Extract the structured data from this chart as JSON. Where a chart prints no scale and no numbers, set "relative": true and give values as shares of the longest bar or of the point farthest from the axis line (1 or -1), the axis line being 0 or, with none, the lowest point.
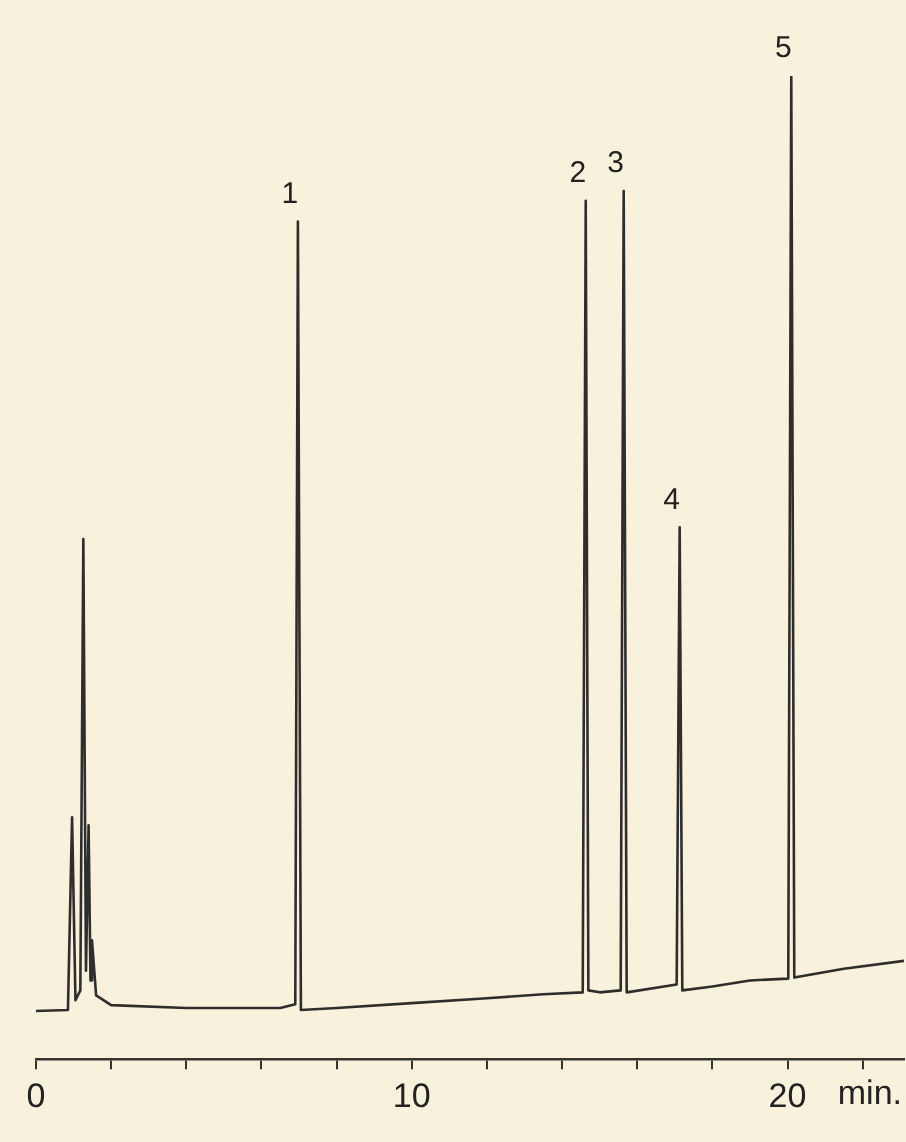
{
  "chart_data": {
    "type": "line",
    "relative": true,
    "xlabel": "min.",
    "color": "#2e2e2e",
    "marker": "none",
    "line_style": "solid",
    "legend": false,
    "grid": false,
    "tick_labels": "x",
    "x": [
      0.0,
      0.85,
      0.96,
      1.05,
      1.18,
      1.26,
      1.33,
      1.4,
      1.45,
      1.49,
      1.6,
      2.0,
      4.0,
      6.5,
      6.9,
      6.97,
      7.05,
      8.0,
      10.0,
      12.0,
      13.5,
      14.55,
      14.63,
      14.7,
      15.0,
      15.56,
      15.64,
      15.72,
      17.05,
      17.13,
      17.2,
      18.0,
      19.0,
      20.02,
      20.1,
      20.18,
      21.5,
      23.1
    ],
    "values": [
      0.049,
      0.05,
      0.246,
      0.06,
      0.07,
      0.529,
      0.09,
      0.238,
      0.08,
      0.121,
      0.065,
      0.055,
      0.052,
      0.052,
      0.056,
      0.852,
      0.05,
      0.052,
      0.057,
      0.062,
      0.066,
      0.068,
      0.873,
      0.07,
      0.068,
      0.07,
      0.883,
      0.068,
      0.076,
      0.541,
      0.07,
      0.074,
      0.08,
      0.082,
      1,
      0.083,
      0.092,
      0.1
    ],
    "xlim": [
      0,
      23.1
    ],
    "xticks": [
      0,
      {
        "value": 2,
        "label": null
      },
      {
        "value": 4,
        "label": null
      },
      {
        "value": 6,
        "label": null
      },
      {
        "value": 8,
        "label": null
      },
      10,
      {
        "value": 12,
        "label": null
      },
      {
        "value": 14,
        "label": null
      },
      {
        "value": 16,
        "label": null
      },
      {
        "value": 18,
        "label": null
      },
      20,
      {
        "value": 22,
        "label": null
      }
    ],
    "annotations": [
      {
        "text": "1",
        "x": 6.97,
        "y": 0.852
      },
      {
        "text": "2",
        "x": 14.63,
        "y": 0.873
      },
      {
        "text": "3",
        "x": 15.64,
        "y": 0.883
      },
      {
        "text": "4",
        "x": 17.13,
        "y": 0.541
      },
      {
        "text": "5",
        "x": 20.1,
        "y": 1
      }
    ]
  }
}
